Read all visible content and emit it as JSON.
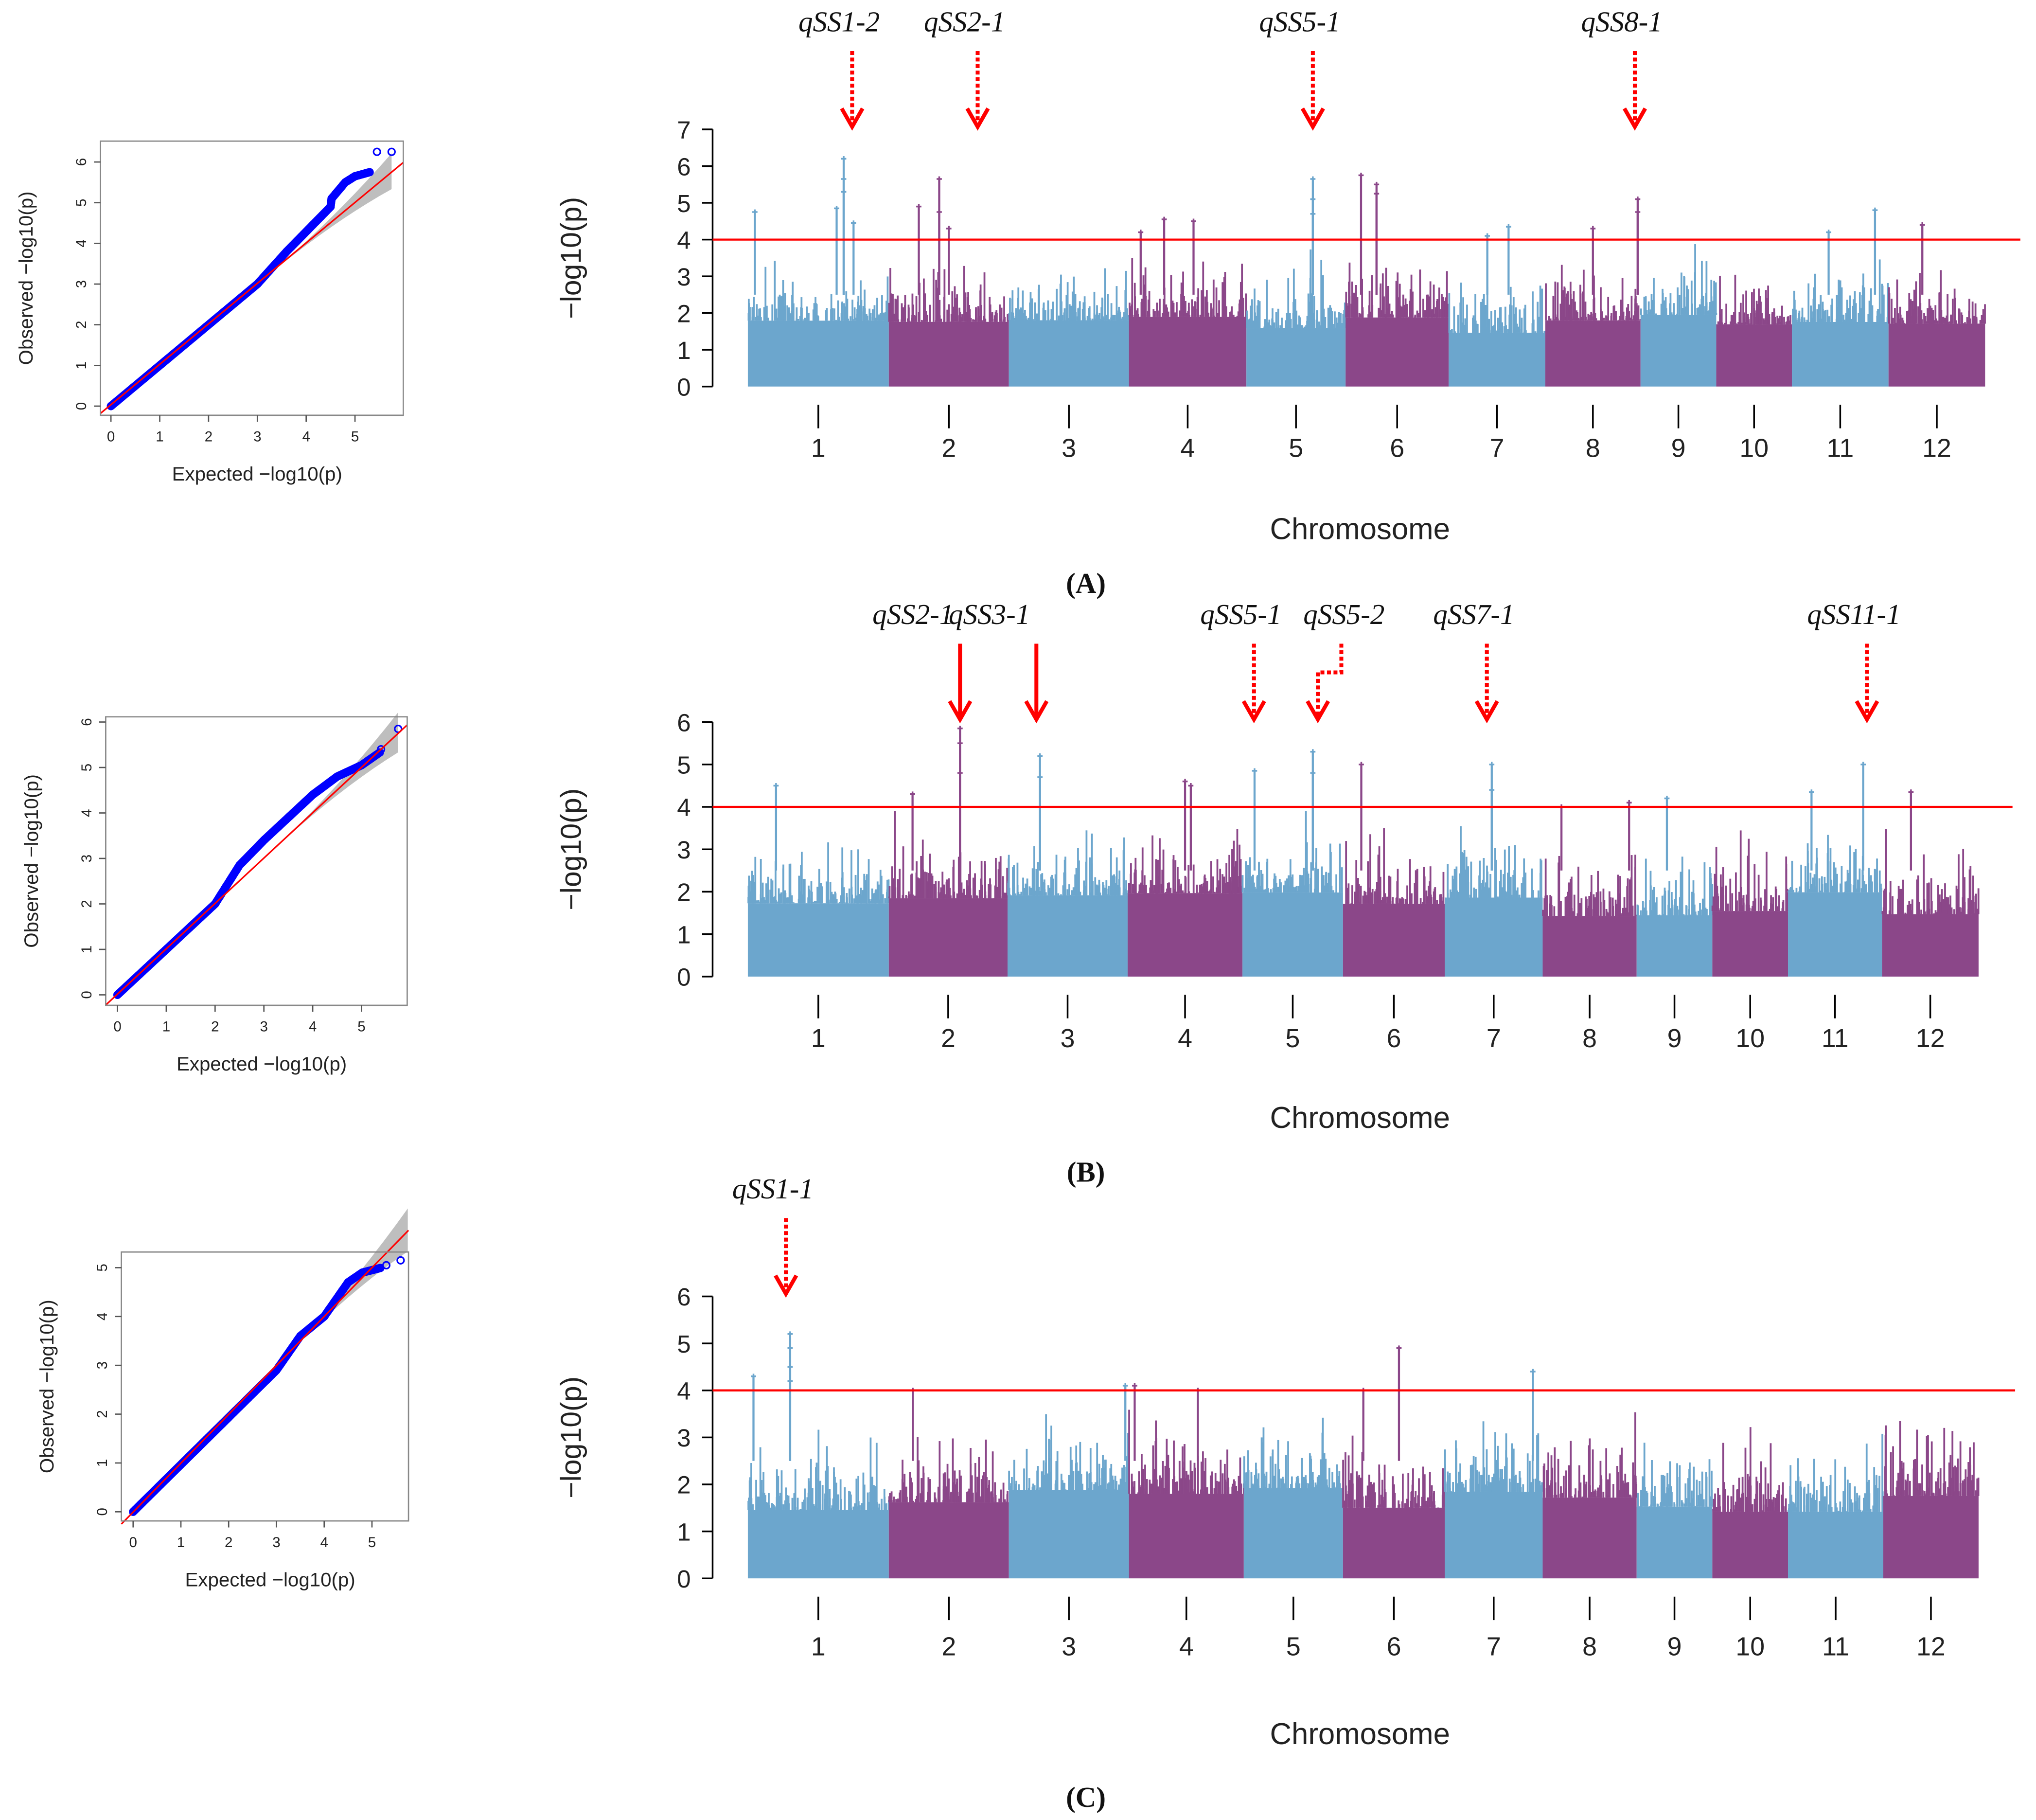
{
  "colors": {
    "blue": "#6ca6cd",
    "purple": "#8b4789",
    "threshold": "#ff0000",
    "qq_points": "#0000ff",
    "ci_band": "#bebebe",
    "arrow": "#ff0000"
  },
  "chart_data": [
    {
      "type": "scatter",
      "panel": "A",
      "kind": "qq",
      "xlabel": "Expected  −log10(p)",
      "ylabel": "Observed  −log10(p)",
      "xticks": [
        "0",
        "1",
        "2",
        "3",
        "4",
        "5"
      ],
      "yticks": [
        "0",
        "1",
        "2",
        "3",
        "4",
        "5",
        "6"
      ],
      "xlim": [
        -0.2,
        5.95
      ],
      "ylim": [
        -0.2,
        6.5
      ],
      "curve": [
        [
          0,
          0
        ],
        [
          3,
          3
        ],
        [
          3.6,
          3.8
        ],
        [
          4.5,
          4.9
        ],
        [
          4.52,
          5.1
        ],
        [
          4.8,
          5.5
        ],
        [
          5.0,
          5.65
        ],
        [
          5.3,
          5.75
        ]
      ],
      "open_points": [
        [
          5.3,
          5.75
        ],
        [
          5.45,
          6.25
        ],
        [
          5.75,
          6.25
        ]
      ]
    },
    {
      "type": "scatter",
      "panel": "A",
      "kind": "manhattan",
      "ylabel": "−log10(p)",
      "xlabel": "Chromosome",
      "caption": "(A)",
      "yticks": [
        "0",
        "1",
        "2",
        "3",
        "4",
        "5",
        "6",
        "7"
      ],
      "ylim": [
        0,
        7
      ],
      "threshold": 4,
      "chromosomes": [
        "1",
        "2",
        "3",
        "4",
        "5",
        "6",
        "7",
        "8",
        "9",
        "10",
        "11",
        "12"
      ],
      "chr_sizes": [
        108,
        92,
        92,
        90,
        76,
        79,
        74,
        73,
        58,
        58,
        74,
        74
      ],
      "peaks": [
        [
          1,
          0.05,
          4.75
        ],
        [
          1,
          0.68,
          6.2
        ],
        [
          1,
          0.68,
          5.65
        ],
        [
          1,
          0.68,
          5.3
        ],
        [
          1,
          0.63,
          4.85
        ],
        [
          1,
          0.75,
          4.45
        ],
        [
          2,
          0.25,
          4.9
        ],
        [
          2,
          0.42,
          5.65
        ],
        [
          2,
          0.42,
          4.75
        ],
        [
          2,
          0.5,
          4.3
        ],
        [
          4,
          0.1,
          4.2
        ],
        [
          4,
          0.3,
          4.55
        ],
        [
          4,
          0.55,
          4.5
        ],
        [
          5,
          0.67,
          5.65
        ],
        [
          5,
          0.67,
          5.1
        ],
        [
          5,
          0.67,
          4.7
        ],
        [
          6,
          0.15,
          5.75
        ],
        [
          6,
          0.3,
          5.5
        ],
        [
          6,
          0.3,
          5.25
        ],
        [
          7,
          0.4,
          4.1
        ],
        [
          7,
          0.62,
          4.35
        ],
        [
          8,
          0.5,
          4.3
        ],
        [
          8,
          0.97,
          5.1
        ],
        [
          8,
          0.97,
          4.75
        ],
        [
          11,
          0.38,
          4.2
        ],
        [
          11,
          0.86,
          4.8
        ],
        [
          12,
          0.35,
          4.4
        ]
      ],
      "qtls": [
        {
          "label": "qSS1-2",
          "chr": 1,
          "pos": 0.74,
          "style": "dotted"
        },
        {
          "label": "qSS2-1",
          "chr": 2,
          "pos": 0.74,
          "style": "dotted"
        },
        {
          "label": "qSS5-1",
          "chr": 5,
          "pos": 0.67,
          "style": "dotted"
        },
        {
          "label": "qSS8-1",
          "chr": 8,
          "pos": 0.94,
          "style": "dotted"
        }
      ]
    },
    {
      "type": "scatter",
      "panel": "B",
      "kind": "qq",
      "xlabel": "Expected  −log10(p)",
      "ylabel": "Observed  −log10(p)",
      "xticks": [
        "0",
        "1",
        "2",
        "3",
        "4",
        "5"
      ],
      "yticks": [
        "0",
        "1",
        "2",
        "3",
        "4",
        "5",
        "6"
      ],
      "xlim": [
        -0.2,
        5.95
      ],
      "ylim": [
        -0.2,
        6.1
      ],
      "curve": [
        [
          0,
          0
        ],
        [
          2,
          2
        ],
        [
          2.5,
          2.85
        ],
        [
          3,
          3.4
        ],
        [
          3.5,
          3.9
        ],
        [
          4,
          4.4
        ],
        [
          4.5,
          4.8
        ],
        [
          5,
          5.05
        ],
        [
          5.4,
          5.35
        ]
      ],
      "open_points": [
        [
          5.2,
          5.2
        ],
        [
          5.4,
          5.4
        ],
        [
          5.75,
          5.85
        ]
      ]
    },
    {
      "type": "scatter",
      "panel": "B",
      "kind": "manhattan",
      "ylabel": "−log10(p)",
      "xlabel": "Chromosome",
      "caption": "(B)",
      "yticks": [
        "0",
        "1",
        "2",
        "3",
        "4",
        "5",
        "6"
      ],
      "ylim": [
        0,
        6
      ],
      "threshold": 4,
      "chromosomes": [
        "1",
        "2",
        "3",
        "4",
        "5",
        "6",
        "7",
        "8",
        "9",
        "10",
        "11",
        "12"
      ],
      "chr_sizes": [
        108,
        91,
        92,
        88,
        77,
        78,
        75,
        72,
        58,
        58,
        72,
        74
      ],
      "peaks": [
        [
          1,
          0.2,
          4.5
        ],
        [
          2,
          0.2,
          4.3
        ],
        [
          2,
          0.6,
          5.85
        ],
        [
          2,
          0.6,
          5.5
        ],
        [
          2,
          0.6,
          4.8
        ],
        [
          3,
          0.27,
          5.2
        ],
        [
          3,
          0.27,
          4.7
        ],
        [
          4,
          0.5,
          4.6
        ],
        [
          4,
          0.55,
          4.5
        ],
        [
          5,
          0.12,
          4.85
        ],
        [
          5,
          0.7,
          5.3
        ],
        [
          5,
          0.7,
          4.8
        ],
        [
          6,
          0.18,
          5.0
        ],
        [
          7,
          0.48,
          5.0
        ],
        [
          7,
          0.48,
          4.4
        ],
        [
          8,
          0.2,
          4.0
        ],
        [
          8,
          0.92,
          4.1
        ],
        [
          9,
          0.4,
          4.2
        ],
        [
          11,
          0.25,
          4.35
        ],
        [
          11,
          0.8,
          5.0
        ],
        [
          12,
          0.3,
          4.35
        ]
      ],
      "qtls": [
        {
          "label": "qSS2-1",
          "chr": 2,
          "pos": 0.6,
          "style": "solid"
        },
        {
          "label": "qSS3-1",
          "chr": 3,
          "pos": 0.24,
          "style": "solid"
        },
        {
          "label": "qSS5-1",
          "chr": 4,
          "pos": 1.1,
          "style": "dotted"
        },
        {
          "label": "qSS5-2",
          "chr": 5,
          "pos": 0.75,
          "style": "elbow"
        },
        {
          "label": "qSS7-1",
          "chr": 7,
          "pos": 0.43,
          "style": "dotted"
        },
        {
          "label": "qSS11-1",
          "chr": 11,
          "pos": 0.84,
          "style": "dotted"
        }
      ]
    },
    {
      "type": "scatter",
      "panel": "C",
      "kind": "qq",
      "xlabel": "Expected  −log10(p)",
      "ylabel": "Observed  −log10(p)",
      "xticks": [
        "0",
        "1",
        "2",
        "3",
        "4",
        "5"
      ],
      "yticks": [
        "0",
        "1",
        "2",
        "3",
        "4",
        "5"
      ],
      "xlim": [
        -0.2,
        5.8
      ],
      "ylim": [
        -0.2,
        5.3
      ],
      "curve": [
        [
          0,
          0
        ],
        [
          3,
          2.9
        ],
        [
          3.5,
          3.6
        ],
        [
          4,
          4
        ],
        [
          4.5,
          4.7
        ],
        [
          4.8,
          4.9
        ],
        [
          5.2,
          5.0
        ]
      ],
      "open_points": [
        [
          5.0,
          4.95
        ],
        [
          5.3,
          5.05
        ],
        [
          5.6,
          5.15
        ]
      ]
    },
    {
      "type": "scatter",
      "panel": "C",
      "kind": "manhattan",
      "ylabel": "−log10(p)",
      "xlabel": "Chromosome",
      "caption": "(C)",
      "yticks": [
        "0",
        "1",
        "2",
        "3",
        "4",
        "5",
        "6"
      ],
      "ylim": [
        0,
        6
      ],
      "threshold": 4,
      "chromosomes": [
        "1",
        "2",
        "3",
        "4",
        "5",
        "6",
        "7",
        "8",
        "9",
        "10",
        "11",
        "12"
      ],
      "chr_sizes": [
        108,
        92,
        92,
        88,
        76,
        78,
        75,
        72,
        58,
        58,
        73,
        73
      ],
      "peaks": [
        [
          1,
          0.04,
          4.3
        ],
        [
          1,
          0.3,
          5.2
        ],
        [
          1,
          0.3,
          4.9
        ],
        [
          1,
          0.3,
          4.5
        ],
        [
          1,
          0.3,
          4.2
        ],
        [
          3,
          0.97,
          4.1
        ],
        [
          4,
          0.05,
          4.1
        ],
        [
          6,
          0.2,
          4.0
        ],
        [
          6,
          0.55,
          4.9
        ],
        [
          7,
          0.9,
          4.4
        ],
        [
          2,
          0.2,
          4.0
        ],
        [
          4,
          0.6,
          4.0
        ]
      ],
      "qtls": [
        {
          "label": "qSS1-1",
          "chr": 1,
          "pos": 0.27,
          "style": "dotted"
        }
      ]
    }
  ]
}
